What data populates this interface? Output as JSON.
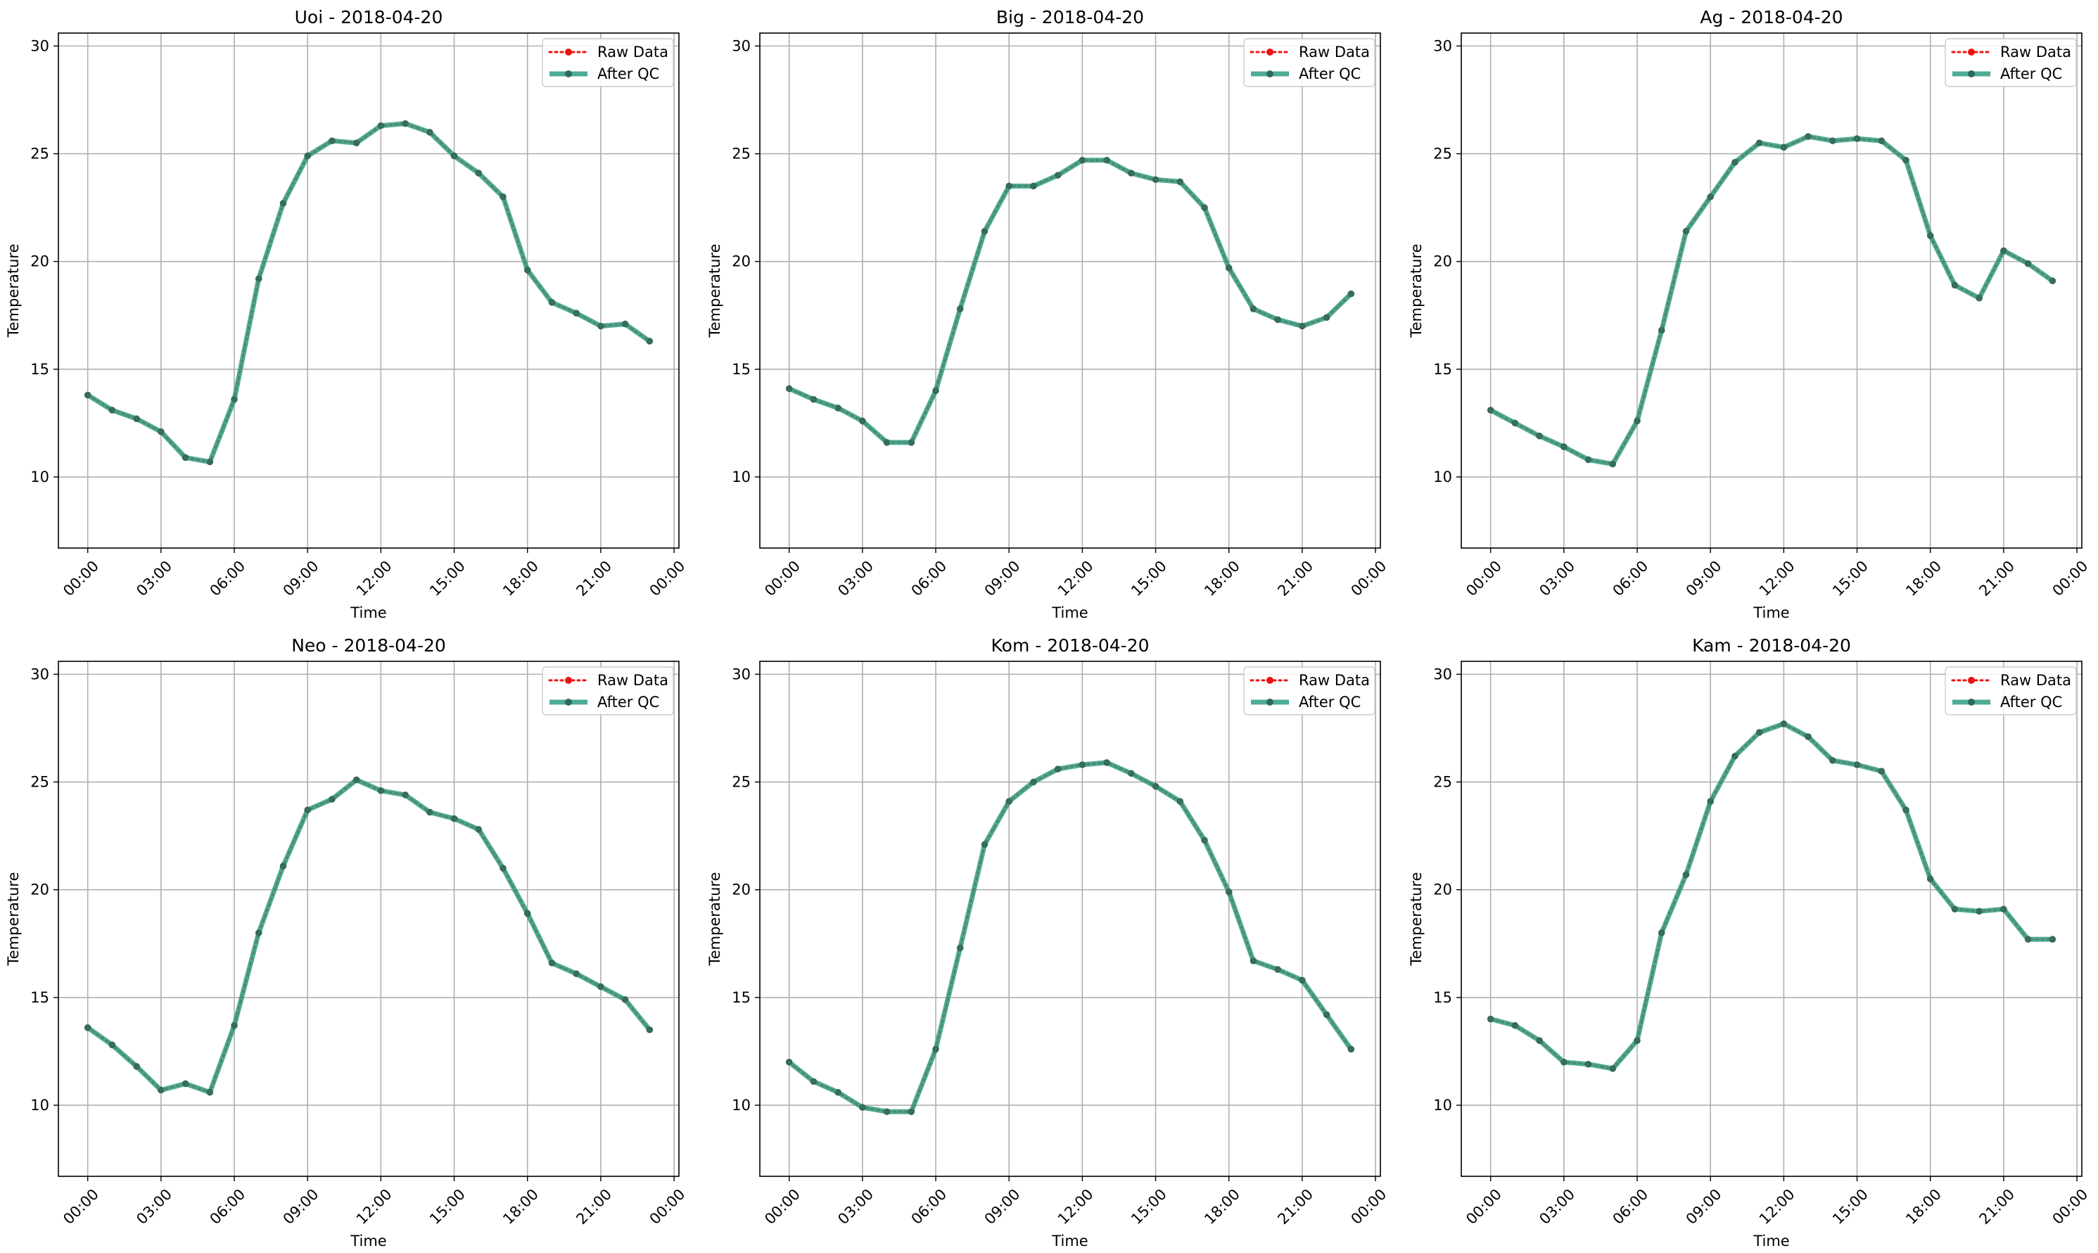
{
  "figure": {
    "x_tick_labels": [
      "00:00",
      "03:00",
      "06:00",
      "09:00",
      "12:00",
      "15:00",
      "18:00",
      "21:00",
      "00:00"
    ],
    "y_ticks": [
      10,
      15,
      20,
      25,
      30
    ],
    "ylim": [
      6.7,
      30.6
    ],
    "xlim_hours": [
      -1.2,
      24.2
    ],
    "grid": true,
    "legend_placement": "top-right",
    "colors": {
      "raw": "#ee1111",
      "qc": "#2e9e82",
      "qc_marker": "#2f6a5a",
      "grid": "#b0b0b0"
    }
  },
  "chart_data": [
    {
      "type": "line",
      "title": "Uoi - 2018-04-20",
      "xlabel": "Time",
      "ylabel": "Temperature",
      "x_hours": [
        0,
        1,
        2,
        3,
        4,
        5,
        6,
        7,
        8,
        9,
        10,
        11,
        12,
        13,
        14,
        15,
        16,
        17,
        18,
        19,
        20,
        21,
        22,
        23
      ],
      "series": [
        {
          "name": "Raw Data",
          "values": [
            13.8,
            13.1,
            12.7,
            12.1,
            10.9,
            10.7,
            13.6,
            19.2,
            22.7,
            24.9,
            25.6,
            25.5,
            26.3,
            26.4,
            26.0,
            24.9,
            24.1,
            23.0,
            19.6,
            18.1,
            17.6,
            17.0,
            17.1,
            16.3
          ]
        },
        {
          "name": "After QC",
          "values": [
            13.8,
            13.1,
            12.7,
            12.1,
            10.9,
            10.7,
            13.6,
            19.2,
            22.7,
            24.9,
            25.6,
            25.5,
            26.3,
            26.4,
            26.0,
            24.9,
            24.1,
            23.0,
            19.6,
            18.1,
            17.6,
            17.0,
            17.1,
            16.3
          ]
        }
      ]
    },
    {
      "type": "line",
      "title": "Big - 2018-04-20",
      "xlabel": "Time",
      "ylabel": "Temperature",
      "x_hours": [
        0,
        1,
        2,
        3,
        4,
        5,
        6,
        7,
        8,
        9,
        10,
        11,
        12,
        13,
        14,
        15,
        16,
        17,
        18,
        19,
        20,
        21,
        22,
        23
      ],
      "series": [
        {
          "name": "Raw Data",
          "values": [
            14.1,
            13.6,
            13.2,
            12.6,
            11.6,
            11.6,
            14.0,
            17.8,
            21.4,
            23.5,
            23.5,
            24.0,
            24.7,
            24.7,
            24.1,
            23.8,
            23.7,
            22.5,
            19.7,
            17.8,
            17.3,
            17.0,
            17.4,
            18.5
          ]
        },
        {
          "name": "After QC",
          "values": [
            14.1,
            13.6,
            13.2,
            12.6,
            11.6,
            11.6,
            14.0,
            17.8,
            21.4,
            23.5,
            23.5,
            24.0,
            24.7,
            24.7,
            24.1,
            23.8,
            23.7,
            22.5,
            19.7,
            17.8,
            17.3,
            17.0,
            17.4,
            18.5
          ]
        }
      ]
    },
    {
      "type": "line",
      "title": "Ag - 2018-04-20",
      "xlabel": "Time",
      "ylabel": "Temperature",
      "x_hours": [
        0,
        1,
        2,
        3,
        4,
        5,
        6,
        7,
        8,
        9,
        10,
        11,
        12,
        13,
        14,
        15,
        16,
        17,
        18,
        19,
        20,
        21,
        22,
        23
      ],
      "series": [
        {
          "name": "Raw Data",
          "values": [
            13.1,
            12.5,
            11.9,
            11.4,
            10.8,
            10.6,
            12.6,
            16.8,
            21.4,
            23.0,
            24.6,
            25.5,
            25.3,
            25.8,
            25.6,
            25.7,
            25.6,
            24.7,
            21.2,
            18.9,
            18.3,
            20.5,
            19.9,
            19.1
          ]
        },
        {
          "name": "After QC",
          "values": [
            13.1,
            12.5,
            11.9,
            11.4,
            10.8,
            10.6,
            12.6,
            16.8,
            21.4,
            23.0,
            24.6,
            25.5,
            25.3,
            25.8,
            25.6,
            25.7,
            25.6,
            24.7,
            21.2,
            18.9,
            18.3,
            20.5,
            19.9,
            19.1
          ]
        }
      ]
    },
    {
      "type": "line",
      "title": "Neo - 2018-04-20",
      "xlabel": "Time",
      "ylabel": "Temperature",
      "x_hours": [
        0,
        1,
        2,
        3,
        4,
        5,
        6,
        7,
        8,
        9,
        10,
        11,
        12,
        13,
        14,
        15,
        16,
        17,
        18,
        19,
        20,
        21,
        22,
        23
      ],
      "series": [
        {
          "name": "Raw Data",
          "values": [
            13.6,
            12.8,
            11.8,
            10.7,
            11.0,
            10.6,
            13.7,
            18.0,
            21.1,
            23.7,
            24.2,
            25.1,
            24.6,
            24.4,
            23.6,
            23.3,
            22.8,
            21.0,
            18.9,
            16.6,
            16.1,
            15.5,
            14.9,
            13.5
          ]
        },
        {
          "name": "After QC",
          "values": [
            13.6,
            12.8,
            11.8,
            10.7,
            11.0,
            10.6,
            13.7,
            18.0,
            21.1,
            23.7,
            24.2,
            25.1,
            24.6,
            24.4,
            23.6,
            23.3,
            22.8,
            21.0,
            18.9,
            16.6,
            16.1,
            15.5,
            14.9,
            13.5
          ]
        }
      ]
    },
    {
      "type": "line",
      "title": "Kom - 2018-04-20",
      "xlabel": "Time",
      "ylabel": "Temperature",
      "x_hours": [
        0,
        1,
        2,
        3,
        4,
        5,
        6,
        7,
        8,
        9,
        10,
        11,
        12,
        13,
        14,
        15,
        16,
        17,
        18,
        19,
        20,
        21,
        22,
        23
      ],
      "series": [
        {
          "name": "Raw Data",
          "values": [
            12.0,
            11.1,
            10.6,
            9.9,
            9.7,
            9.7,
            12.6,
            17.3,
            22.1,
            24.1,
            25.0,
            25.6,
            25.8,
            25.9,
            25.4,
            24.8,
            24.1,
            22.3,
            19.9,
            16.7,
            16.3,
            15.8,
            14.2,
            12.6
          ]
        },
        {
          "name": "After QC",
          "values": [
            12.0,
            11.1,
            10.6,
            9.9,
            9.7,
            9.7,
            12.6,
            17.3,
            22.1,
            24.1,
            25.0,
            25.6,
            25.8,
            25.9,
            25.4,
            24.8,
            24.1,
            22.3,
            19.9,
            16.7,
            16.3,
            15.8,
            14.2,
            12.6
          ]
        }
      ]
    },
    {
      "type": "line",
      "title": "Kam - 2018-04-20",
      "xlabel": "Time",
      "ylabel": "Temperature",
      "x_hours": [
        0,
        1,
        2,
        3,
        4,
        5,
        6,
        7,
        8,
        9,
        10,
        11,
        12,
        13,
        14,
        15,
        16,
        17,
        18,
        19,
        20,
        21,
        22,
        23
      ],
      "series": [
        {
          "name": "Raw Data",
          "values": [
            14.0,
            13.7,
            13.0,
            12.0,
            11.9,
            11.7,
            13.0,
            18.0,
            20.7,
            24.1,
            26.2,
            27.3,
            27.7,
            27.1,
            26.0,
            25.8,
            25.5,
            23.7,
            20.5,
            19.1,
            19.0,
            19.1,
            17.7,
            17.7
          ]
        },
        {
          "name": "After QC",
          "values": [
            14.0,
            13.7,
            13.0,
            12.0,
            11.9,
            11.7,
            13.0,
            18.0,
            20.7,
            24.1,
            26.2,
            27.3,
            27.7,
            27.1,
            26.0,
            25.8,
            25.5,
            23.7,
            20.5,
            19.1,
            19.0,
            19.1,
            17.7,
            17.7
          ]
        }
      ]
    }
  ]
}
